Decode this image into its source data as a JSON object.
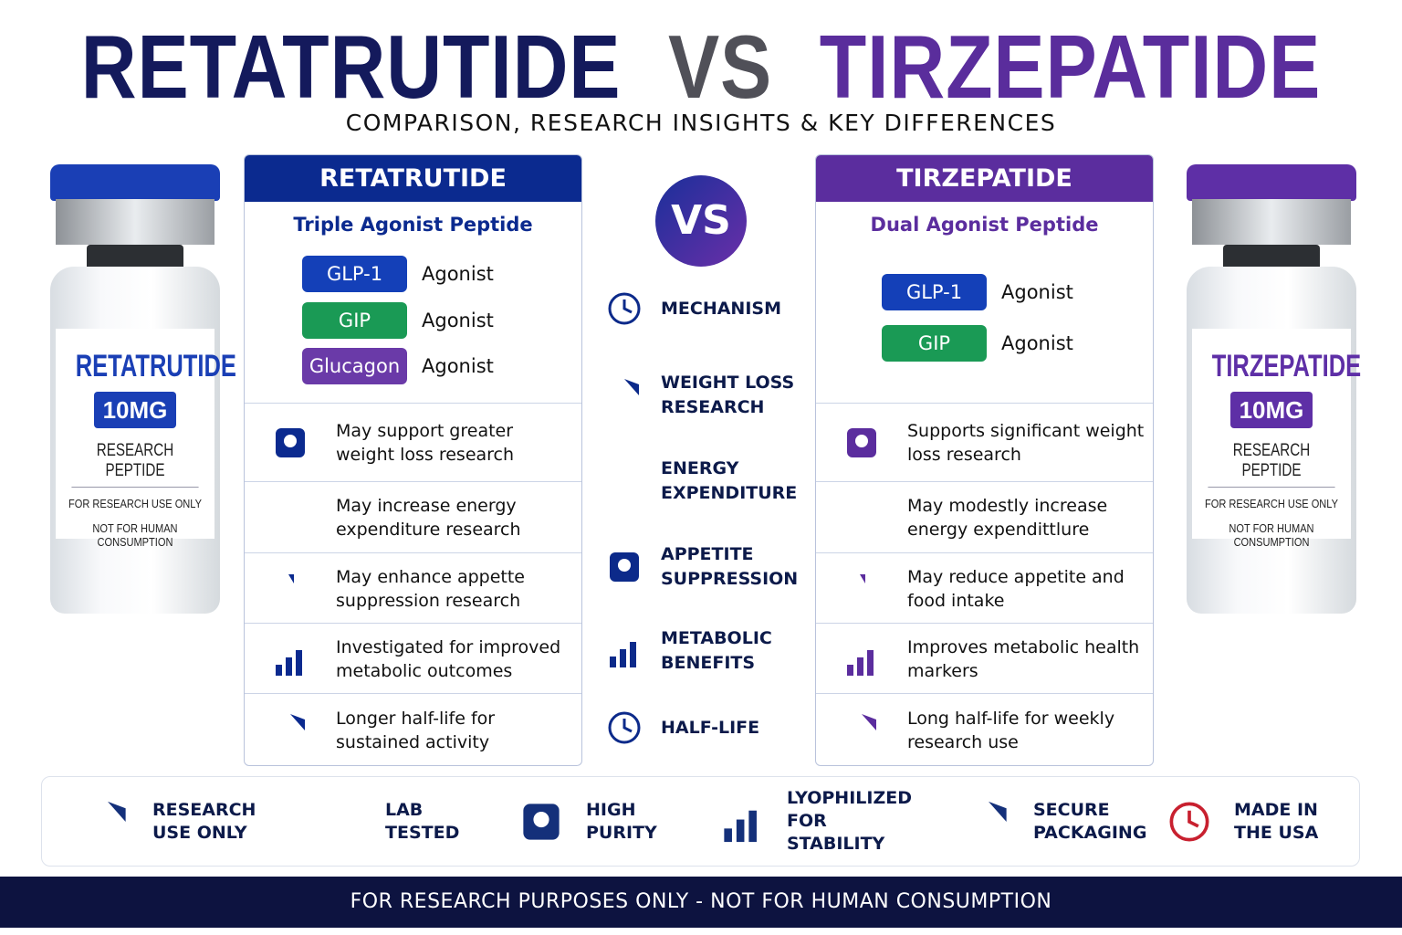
{
  "header": {
    "title_left": "RETATRUTIDE",
    "title_vs": "VS",
    "title_right": "TIRZEPATIDE",
    "subtitle": "COMPARISON, RESEARCH INSIGHTS & KEY DIFFERENCES"
  },
  "vials": [
    {
      "name": "RETATRUTIDE",
      "dose": "10MG",
      "label": "RESEARCH PEPTIDE",
      "note1": "FOR RESEARCH USE ONLY",
      "note2": "NOT FOR HUMAN CONSUMPTION",
      "color": "#1a3fb5"
    },
    {
      "name": "TIRZEPATIDE",
      "dose": "10MG",
      "label": "RESEARCH PEPTIDE",
      "note1": "FOR RESEARCH USE ONLY",
      "note2": "NOT FOR HUMAN CONSUMPTION",
      "color": "#5e2fa6"
    }
  ],
  "panels": [
    {
      "title": "RETATRUTIDE",
      "subtitle": "Triple Agonist Peptide",
      "color": "#0b2a8f",
      "receptors": [
        {
          "name": "GLP-1",
          "role": "Agonist",
          "color": "#1440b8"
        },
        {
          "name": "GIP",
          "role": "Agonist",
          "color": "#1a9a55"
        },
        {
          "name": "Glucagon",
          "role": "Agonist",
          "color": "#6a3aa8"
        }
      ],
      "rows": [
        "May support greater weight loss research",
        "May increase energy expenditure research",
        "May enhance appette suppression research",
        "Investigated for improved metabolic outcomes",
        "Longer half-life for sustained activity"
      ]
    },
    {
      "title": "TIRZEPATIDE",
      "subtitle": "Dual Agonist Peptide",
      "color": "#5b2d9e",
      "receptors": [
        {
          "name": "GLP-1",
          "role": "Agonist",
          "color": "#1440b8"
        },
        {
          "name": "GIP",
          "role": "Agonist",
          "color": "#1a9a55"
        }
      ],
      "rows": [
        "Supports significant weight loss research",
        "May modestly increase energy expendittlure",
        "May reduce appetite and food intake",
        "Improves metabolic health markers",
        "Long half-life for weekly research use"
      ]
    }
  ],
  "center": {
    "badge": "VS",
    "categories": [
      "MECHANISM",
      "WEIGHT LOSS RESEARCH",
      "ENERGY EXPENDITURE",
      "APPETITE SUPPRESSION",
      "METABOLIC BENEFITS",
      "HALF-LIFE"
    ]
  },
  "features": [
    "RESEARCH USE ONLY",
    "LAB TESTED",
    "HIGH PURITY",
    "LYOPHILIZED FOR STABILITY",
    "SECURE PACKAGING",
    "MADE IN THE USA"
  ],
  "footer": "FOR RESEARCH PURPOSES ONLY - NOT FOR HUMAN CONSUMPTION"
}
